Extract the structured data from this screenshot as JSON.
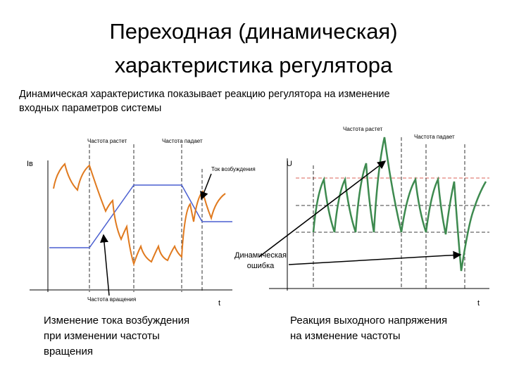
{
  "title": {
    "lines": [
      "Переходная (динамическая)",
      "характеристика регулятора"
    ]
  },
  "subtitle": {
    "lines": [
      "Динамическая характеристика показывает реакцию регулятора на изменение",
      "входных параметров системы"
    ]
  },
  "left_diagram": {
    "freq_rises": "Частота растет",
    "freq_falls": "Частота падает",
    "y_axis": "Iв",
    "current_label": "Ток возбуждения",
    "speed_label": "Частота вращения",
    "x_axis": "t",
    "caption": [
      "Изменение тока возбуждения",
      "при изменении частоты",
      "вращения"
    ]
  },
  "right_diagram": {
    "freq_rises": "Частота растет",
    "freq_falls": "Частота падает",
    "y_axis": "U",
    "error_label": [
      "Динамическая",
      "ошибка"
    ],
    "x_axis": "t",
    "caption": [
      "Реакция выходного напряжения",
      "на изменение частоты"
    ]
  }
}
